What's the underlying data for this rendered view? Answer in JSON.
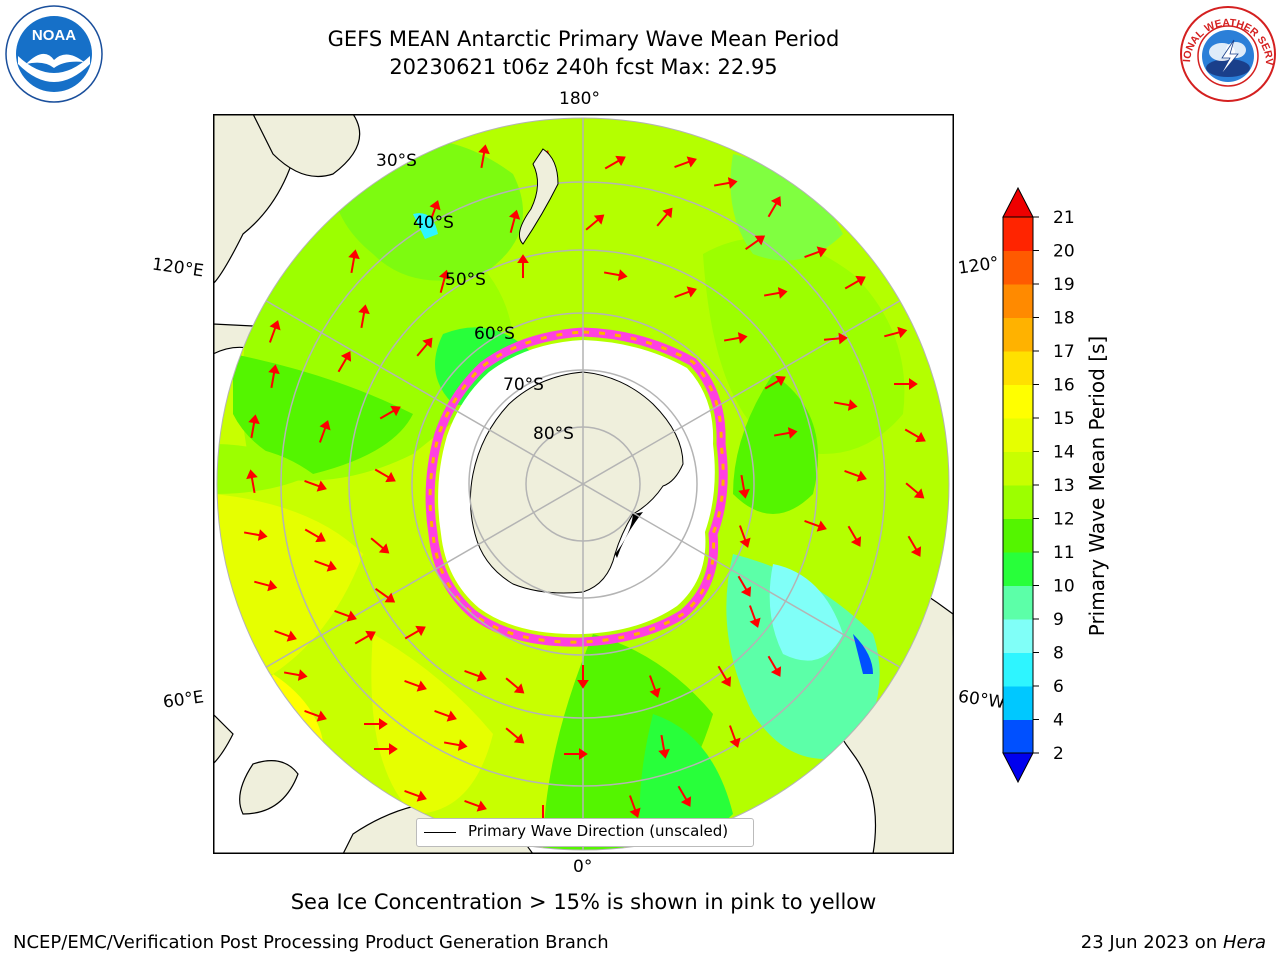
{
  "title": {
    "line1": "GEFS MEAN Antarctic Primary Wave Mean Period",
    "line2": "20230621 t06z 240h fcst   Max: 22.95"
  },
  "logos": {
    "noaa": {
      "text": "NOAA",
      "icon": "noaa-seagull-logo"
    },
    "nws": {
      "text": "NATIONAL WEATHER SERVICE",
      "icon": "nws-lightning-cloud-logo"
    }
  },
  "graticule": {
    "longitudes": [
      "180°",
      "120°E",
      "120°",
      "60°E",
      "60°W",
      "0°"
    ],
    "latitudes": [
      "30°S",
      "40°S",
      "50°S",
      "60°S",
      "70°S",
      "80°S"
    ]
  },
  "colorbar": {
    "label": "Primary Wave Mean Period [s]",
    "ticks": [
      "2",
      "4",
      "6",
      "8",
      "9",
      "10",
      "11",
      "12",
      "13",
      "14",
      "15",
      "16",
      "17",
      "18",
      "19",
      "20",
      "21"
    ],
    "colors": [
      "#0050ff",
      "#00c8ff",
      "#2ef5ff",
      "#80fff8",
      "#5cffa8",
      "#28ff3a",
      "#54f500",
      "#9cff00",
      "#c8ff00",
      "#e6ff00",
      "#ffff00",
      "#ffe000",
      "#ffb200",
      "#ff8a00",
      "#ff5a00",
      "#ff2400"
    ],
    "under_color": "#0000ee",
    "over_color": "#ee0000"
  },
  "legend": {
    "label": "Primary Wave Direction (unscaled)"
  },
  "ice_note": "Sea Ice Concentration > 15% is shown in pink to yellow",
  "footer": {
    "left": "NCEP/EMC/Verification Post Processing Product Generation Branch",
    "right_date": "23 Jun 2023 on ",
    "right_host": "Hera"
  },
  "map_colors": {
    "land": "#efefdc",
    "ice": "#ffffff",
    "ice_edge": "#ff40e0",
    "arrow": "#ff0000",
    "grid": "#b4b4b4"
  }
}
